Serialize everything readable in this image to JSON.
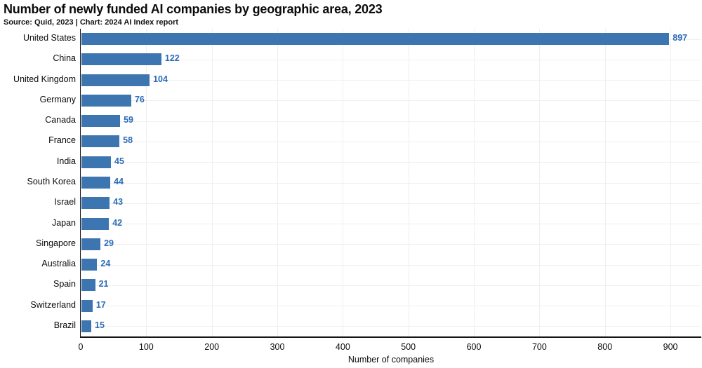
{
  "header": {
    "title": "Number of newly funded AI companies by geographic area, 2023",
    "source": "Source: Quid, 2023 | Chart: 2024 AI Index report"
  },
  "chart_data": {
    "type": "bar",
    "orientation": "horizontal",
    "title": "Number of newly funded AI companies by geographic area, 2023",
    "subtitle": "Source: Quid, 2023 | Chart: 2024 AI Index report",
    "categories": [
      "United States",
      "China",
      "United Kingdom",
      "Germany",
      "Canada",
      "France",
      "India",
      "South Korea",
      "Israel",
      "Japan",
      "Singapore",
      "Australia",
      "Spain",
      "Switzerland",
      "Brazil"
    ],
    "values": [
      897,
      122,
      104,
      76,
      59,
      58,
      45,
      44,
      43,
      42,
      29,
      24,
      21,
      17,
      15
    ],
    "xlabel": "Number of companies",
    "ylabel": "",
    "x_ticks": [
      0,
      100,
      200,
      300,
      400,
      500,
      600,
      700,
      800,
      900
    ],
    "xlim": [
      0,
      946
    ],
    "grid": "light vertical lines at majors, light horizontal lines at bar centers",
    "legend": "none",
    "value_labels": "at end of each bar",
    "colors": {
      "bar": "#3c75b0",
      "value_label": "#2c6cb8",
      "axis": "#161616",
      "gridline": "#efefef",
      "text": "#0b0b0b",
      "background": "#ffffff"
    }
  }
}
